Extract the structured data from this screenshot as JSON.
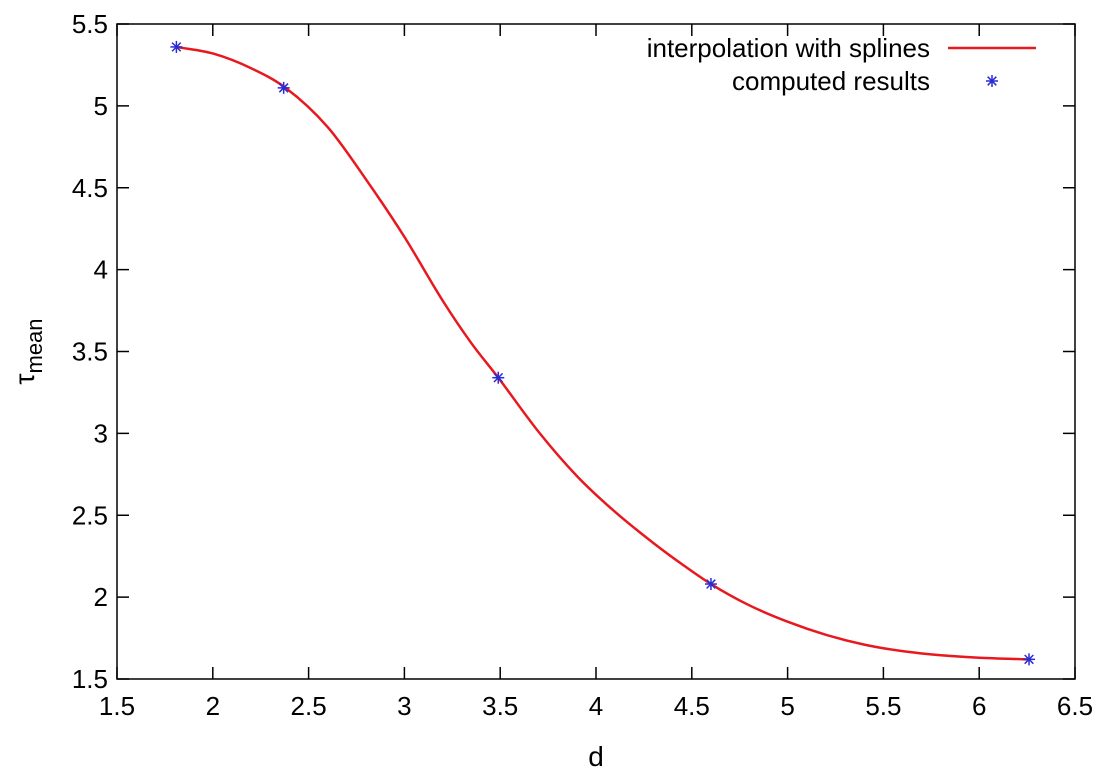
{
  "chart_data": {
    "type": "line",
    "xlabel": "d",
    "ylabel": {
      "base": "τ",
      "subscript": "mean"
    },
    "xlim": [
      1.5,
      6.5
    ],
    "ylim": [
      1.5,
      5.5
    ],
    "x_ticks": [
      1.5,
      2,
      2.5,
      3,
      3.5,
      4,
      4.5,
      5,
      5.5,
      6,
      6.5
    ],
    "x_tick_labels": [
      "1.5",
      "2",
      "2.5",
      "3",
      "3.5",
      "4",
      "4.5",
      "5",
      "5.5",
      "6",
      "6.5"
    ],
    "y_ticks": [
      1.5,
      2,
      2.5,
      3,
      3.5,
      4,
      4.5,
      5,
      5.5
    ],
    "y_tick_labels": [
      "1.5",
      "2",
      "2.5",
      "3",
      "3.5",
      "4",
      "4.5",
      "5",
      "5.5"
    ],
    "grid": false,
    "legend_position": "top-right",
    "series": [
      {
        "name": "interpolation with splines",
        "kind": "line",
        "color": "#e8191e",
        "x": [
          1.81,
          2.0,
          2.2,
          2.38,
          2.6,
          2.8,
          3.0,
          3.2,
          3.35,
          3.49,
          3.7,
          3.9,
          4.1,
          4.3,
          4.45,
          4.6,
          4.8,
          5.0,
          5.2,
          5.4,
          5.6,
          5.8,
          6.0,
          6.26
        ],
        "values": [
          5.36,
          5.32,
          5.23,
          5.11,
          4.87,
          4.55,
          4.2,
          3.81,
          3.55,
          3.34,
          3.01,
          2.74,
          2.52,
          2.33,
          2.2,
          2.08,
          1.95,
          1.85,
          1.77,
          1.71,
          1.67,
          1.645,
          1.63,
          1.62
        ]
      },
      {
        "name": "computed results",
        "kind": "points",
        "marker": "asterisk",
        "color": "#2b2bd4",
        "x": [
          1.81,
          2.37,
          3.49,
          4.6,
          6.26
        ],
        "values": [
          5.36,
          5.11,
          3.34,
          2.08,
          1.62
        ]
      }
    ]
  }
}
